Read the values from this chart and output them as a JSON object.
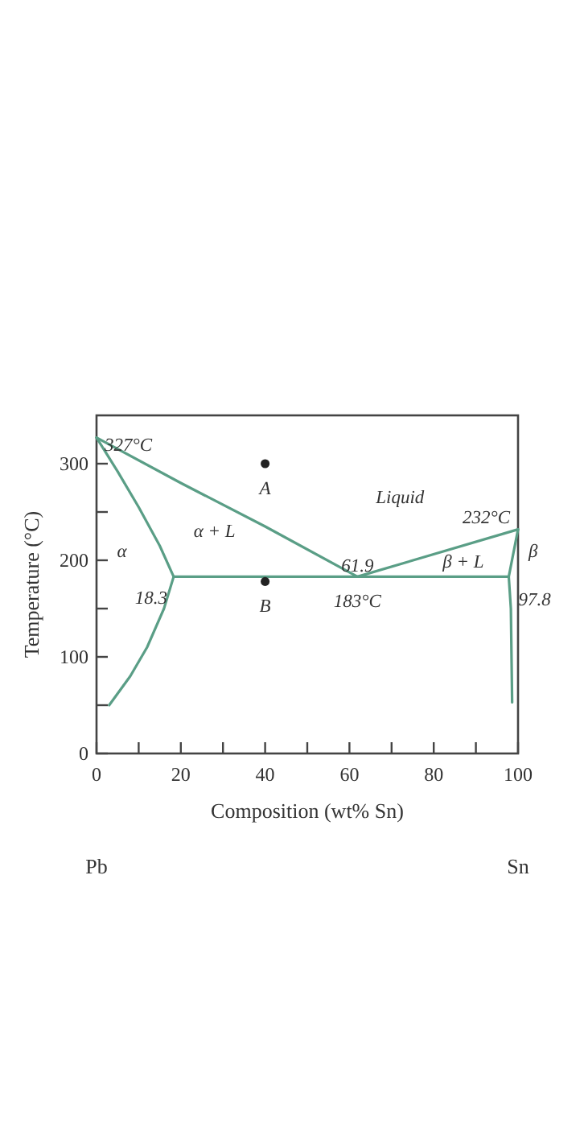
{
  "chart_data": {
    "type": "line",
    "xlabel": "Composition (wt% Sn)",
    "ylabel": "Temperature (°C)",
    "xlim": [
      0,
      100
    ],
    "ylim": [
      0,
      350
    ],
    "xticks": [
      0,
      {
        "value": 10,
        "label": null
      },
      20,
      {
        "value": 30,
        "label": null
      },
      40,
      {
        "value": 50,
        "label": null
      },
      60,
      {
        "value": 70,
        "label": null
      },
      80,
      {
        "value": 90,
        "label": null
      },
      100
    ],
    "yticks": [
      0,
      {
        "value": 50,
        "label": null
      },
      100,
      {
        "value": 150,
        "label": null
      },
      200,
      {
        "value": 250,
        "label": null
      },
      300
    ],
    "marker": "none",
    "line_style": "solid",
    "grid": false,
    "series": [
      {
        "color": "#5a9e86",
        "x": [
          0,
          20,
          40,
          61.9,
          100
        ],
        "values": [
          327,
          280,
          235,
          183,
          232
        ]
      },
      {
        "color": "#5a9e86",
        "x": [
          0,
          5,
          10,
          15,
          18.3,
          16,
          12,
          8,
          3
        ],
        "values": [
          327,
          292,
          255,
          215,
          183,
          150,
          110,
          80,
          50
        ]
      },
      {
        "color": "#5a9e86",
        "x": [
          18.3,
          97.8,
          98.3,
          98.6
        ],
        "values": [
          183,
          183,
          150,
          53
        ]
      },
      {
        "color": "#5a9e86",
        "x": [
          97.8,
          100
        ],
        "values": [
          183,
          232
        ]
      },
      {
        "type": "scatter",
        "marker": "circle",
        "color": "#222222",
        "x": [
          40,
          40
        ],
        "values": [
          300,
          178
        ]
      }
    ],
    "annotations": [
      {
        "text": "327°C",
        "x": 0,
        "y": 327
      },
      {
        "text": "232°C",
        "x": 100,
        "y": 232
      },
      {
        "text": "18.3",
        "x": 18.3,
        "y": 183
      },
      {
        "text": "61.9",
        "x": 61.9,
        "y": 183
      },
      {
        "text": "183°C",
        "x": 61.9,
        "y": 183
      },
      {
        "text": "97.8",
        "x": 97.8,
        "y": 183
      },
      "β",
      "α",
      "α + L",
      "β + L",
      "Liquid",
      {
        "text": "A",
        "x": 40,
        "y": 300
      },
      {
        "text": "B",
        "x": 40,
        "y": 178
      },
      "Pb",
      "Sn"
    ]
  }
}
